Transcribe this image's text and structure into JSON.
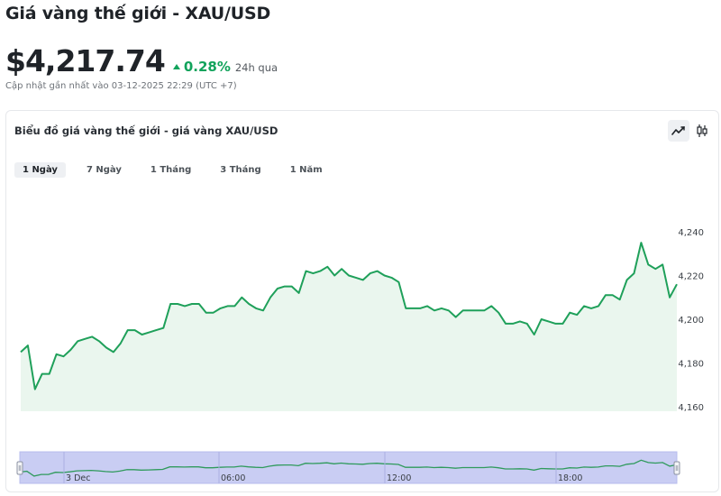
{
  "header": {
    "title": "Giá vàng thế giới - XAU/USD",
    "price": "$4,217.74",
    "change": "0.28%",
    "period": "24h qua",
    "updated": "Cập nhật gần nhất vào 03-12-2025 22:29 (UTC +7)"
  },
  "card": {
    "title": "Biểu đồ giá vàng thế giới - giá vàng XAU/USD",
    "controls": [
      {
        "name": "line-chart-icon",
        "active": true
      },
      {
        "name": "candlestick-icon",
        "active": false
      }
    ],
    "tabs": [
      {
        "label": "1 Ngày",
        "active": true
      },
      {
        "label": "7 Ngày",
        "active": false
      },
      {
        "label": "1 Tháng",
        "active": false
      },
      {
        "label": "3 Tháng",
        "active": false
      },
      {
        "label": "1 Năm",
        "active": false
      }
    ]
  },
  "colors": {
    "line": "#1fa05a",
    "area": "#eaf6ee",
    "navigator_fill": "#c9cdf3",
    "navigator_line": "#2f9a5c",
    "up": "#12a35c"
  },
  "chart_data": {
    "type": "area",
    "y_ticks": [
      "4,160",
      "4,180",
      "4,200",
      "4,220",
      "4,240"
    ],
    "y_tick_values": [
      4160,
      4180,
      4200,
      4220,
      4240
    ],
    "ylim": [
      4160,
      4240
    ],
    "navigator_labels": [
      "3 Dec",
      "06:00",
      "12:00",
      "18:00"
    ],
    "values": [
      4185,
      4188,
      4168,
      4175,
      4175,
      4184,
      4183,
      4186,
      4190,
      4191,
      4192,
      4190,
      4187,
      4185,
      4189,
      4195,
      4195,
      4193,
      4194,
      4195,
      4196,
      4207,
      4207,
      4206,
      4207,
      4207,
      4203,
      4203,
      4205,
      4206,
      4206,
      4210,
      4207,
      4205,
      4204,
      4210,
      4214,
      4215,
      4215,
      4212,
      4222,
      4221,
      4222,
      4224,
      4220,
      4223,
      4220,
      4219,
      4218,
      4221,
      4222,
      4220,
      4219,
      4217,
      4205,
      4205,
      4205,
      4206,
      4204,
      4205,
      4204,
      4201,
      4204,
      4204,
      4204,
      4204,
      4206,
      4203,
      4198,
      4198,
      4199,
      4198,
      4193,
      4200,
      4199,
      4198,
      4198,
      4203,
      4202,
      4206,
      4205,
      4206,
      4211,
      4211,
      4209,
      4218,
      4221,
      4235,
      4225,
      4223,
      4225,
      4210,
      4216
    ]
  }
}
